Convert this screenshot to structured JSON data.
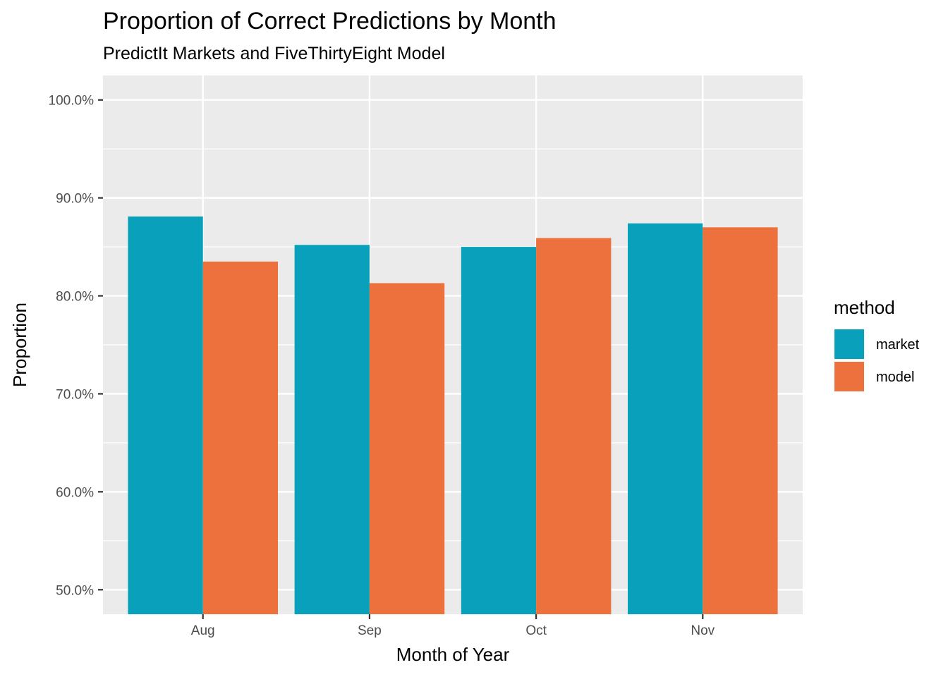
{
  "chart_data": {
    "type": "bar",
    "title": "Proportion of Correct Predictions by Month",
    "subtitle": "PredictIt Markets and FiveThirtyEight Model",
    "xlabel": "Month of Year",
    "ylabel": "Proportion",
    "categories": [
      "Aug",
      "Sep",
      "Oct",
      "Nov"
    ],
    "series": [
      {
        "name": "market",
        "color": "#08a0ba",
        "values": [
          0.881,
          0.852,
          0.85,
          0.874
        ]
      },
      {
        "name": "model",
        "color": "#ec713c",
        "values": [
          0.835,
          0.813,
          0.859,
          0.87
        ]
      }
    ],
    "ylim": [
      0.475,
      1.025
    ],
    "y_ticks": [
      0.5,
      0.6,
      0.7,
      0.8,
      0.9,
      1.0
    ],
    "y_tick_labels": [
      "50.0%",
      "60.0%",
      "70.0%",
      "80.0%",
      "90.0%",
      "100.0%"
    ],
    "legend": {
      "title": "method",
      "placement": "right"
    },
    "grid": true,
    "panel_background": "#ebebeb",
    "grid_color": "#ffffff"
  }
}
